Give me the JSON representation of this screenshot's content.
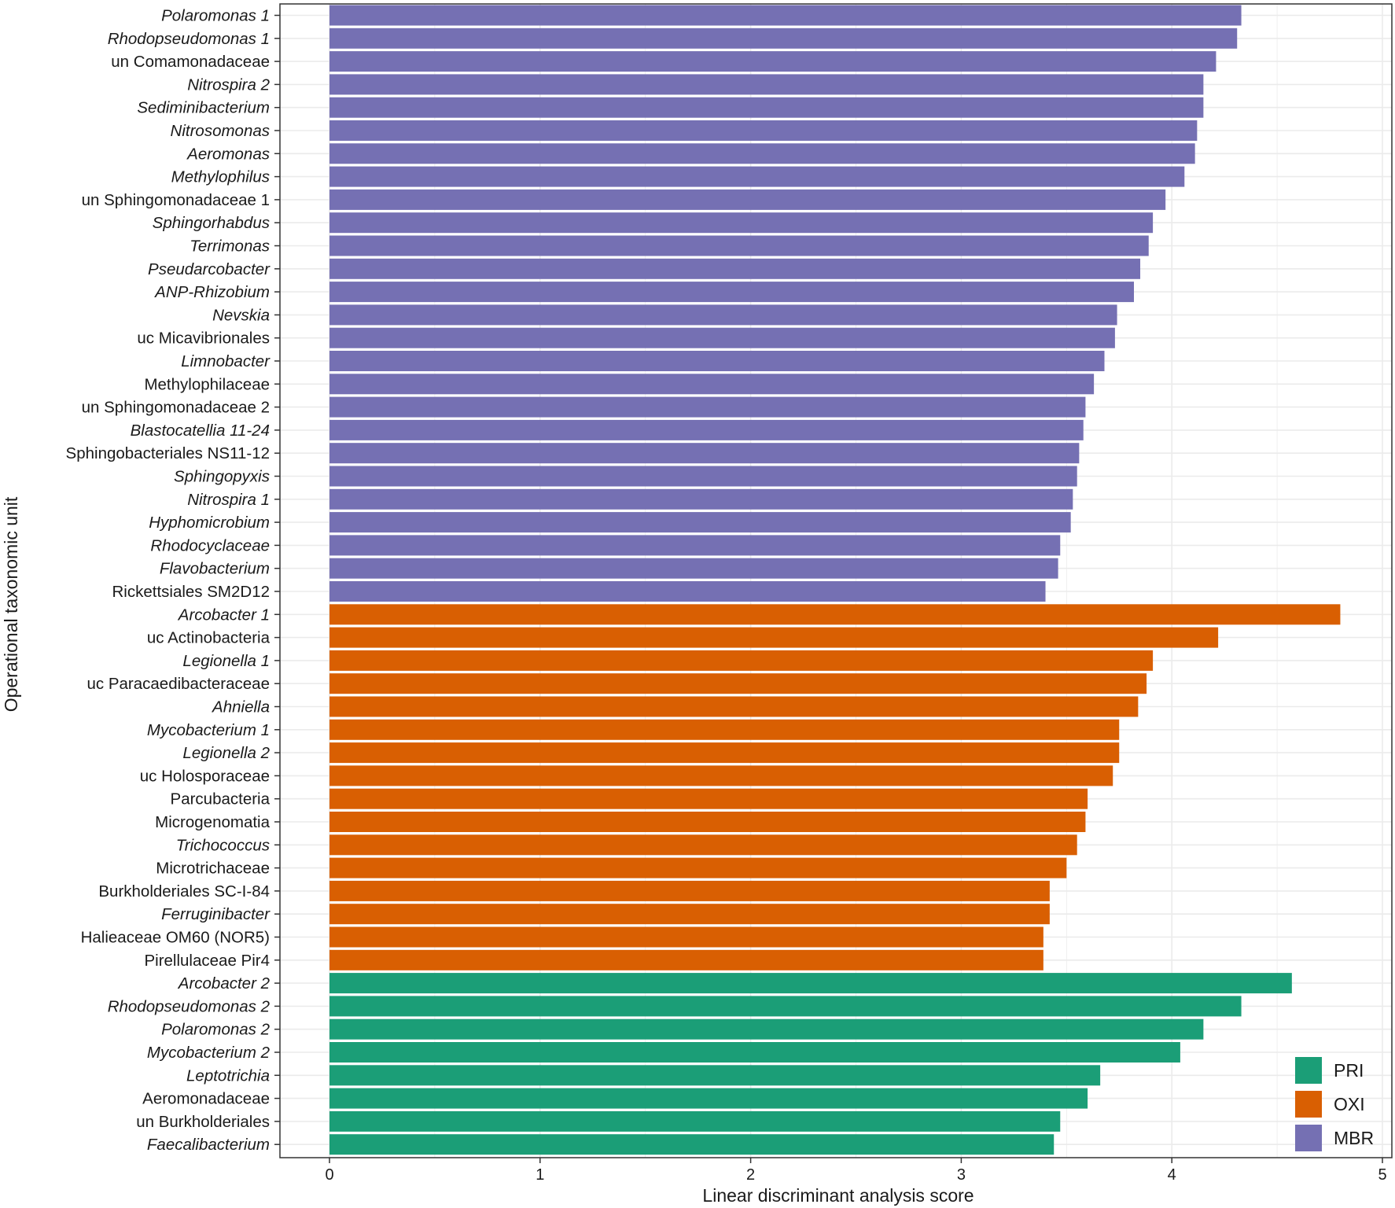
{
  "chart_data": {
    "type": "bar",
    "orientation": "horizontal",
    "xlabel": "Linear discriminant analysis score",
    "ylabel": "Operational taxonomic unit",
    "xlim": [
      0,
      5
    ],
    "xticks": [
      "0",
      "1",
      "2",
      "3",
      "4",
      "5"
    ],
    "grid": true,
    "legend_position": "bottom-right",
    "legend": [
      {
        "key": "PRI",
        "label": "PRI",
        "color": "#1b9e77"
      },
      {
        "key": "OXI",
        "label": "OXI",
        "color": "#d95f02"
      },
      {
        "key": "MBR",
        "label": "MBR",
        "color": "#7570b3"
      }
    ],
    "bars": [
      {
        "label": "Polaromonas 1",
        "value": 4.33,
        "group": "MBR",
        "italic": true
      },
      {
        "label": "Rhodopseudomonas 1",
        "value": 4.31,
        "group": "MBR",
        "italic": true
      },
      {
        "label": "un Comamonadaceae",
        "value": 4.21,
        "group": "MBR",
        "italic": false
      },
      {
        "label": "Nitrospira 2",
        "value": 4.15,
        "group": "MBR",
        "italic": true
      },
      {
        "label": "Sediminibacterium",
        "value": 4.15,
        "group": "MBR",
        "italic": true
      },
      {
        "label": "Nitrosomonas",
        "value": 4.12,
        "group": "MBR",
        "italic": true
      },
      {
        "label": "Aeromonas",
        "value": 4.11,
        "group": "MBR",
        "italic": true
      },
      {
        "label": "Methylophilus",
        "value": 4.06,
        "group": "MBR",
        "italic": true
      },
      {
        "label": "un Sphingomonadaceae 1",
        "value": 3.97,
        "group": "MBR",
        "italic": false
      },
      {
        "label": "Sphingorhabdus",
        "value": 3.91,
        "group": "MBR",
        "italic": true
      },
      {
        "label": "Terrimonas",
        "value": 3.89,
        "group": "MBR",
        "italic": true
      },
      {
        "label": "Pseudarcobacter",
        "value": 3.85,
        "group": "MBR",
        "italic": true
      },
      {
        "label": "ANP-Rhizobium",
        "value": 3.82,
        "group": "MBR",
        "italic": true
      },
      {
        "label": "Nevskia",
        "value": 3.74,
        "group": "MBR",
        "italic": true
      },
      {
        "label": "uc Micavibrionales",
        "value": 3.73,
        "group": "MBR",
        "italic": false
      },
      {
        "label": "Limnobacter",
        "value": 3.68,
        "group": "MBR",
        "italic": true
      },
      {
        "label": "Methylophilaceae",
        "value": 3.63,
        "group": "MBR",
        "italic": false
      },
      {
        "label": "un Sphingomonadaceae 2",
        "value": 3.59,
        "group": "MBR",
        "italic": false
      },
      {
        "label": "Blastocatellia 11-24",
        "value": 3.58,
        "group": "MBR",
        "italic": true
      },
      {
        "label": "Sphingobacteriales NS11-12",
        "value": 3.56,
        "group": "MBR",
        "italic": false
      },
      {
        "label": "Sphingopyxis",
        "value": 3.55,
        "group": "MBR",
        "italic": true
      },
      {
        "label": "Nitrospira 1",
        "value": 3.53,
        "group": "MBR",
        "italic": true
      },
      {
        "label": "Hyphomicrobium",
        "value": 3.52,
        "group": "MBR",
        "italic": true
      },
      {
        "label": "Rhodocyclaceae",
        "value": 3.47,
        "group": "MBR",
        "italic": true
      },
      {
        "label": "Flavobacterium",
        "value": 3.46,
        "group": "MBR",
        "italic": true
      },
      {
        "label": "Rickettsiales SM2D12",
        "value": 3.4,
        "group": "MBR",
        "italic": false
      },
      {
        "label": "Arcobacter 1",
        "value": 4.8,
        "group": "OXI",
        "italic": true
      },
      {
        "label": "uc Actinobacteria",
        "value": 4.22,
        "group": "OXI",
        "italic": false
      },
      {
        "label": "Legionella 1",
        "value": 3.91,
        "group": "OXI",
        "italic": true
      },
      {
        "label": "uc Paracaedibacteraceae",
        "value": 3.88,
        "group": "OXI",
        "italic": false
      },
      {
        "label": "Ahniella",
        "value": 3.84,
        "group": "OXI",
        "italic": true
      },
      {
        "label": "Mycobacterium 1",
        "value": 3.75,
        "group": "OXI",
        "italic": true
      },
      {
        "label": "Legionella 2",
        "value": 3.75,
        "group": "OXI",
        "italic": true
      },
      {
        "label": "uc Holosporaceae",
        "value": 3.72,
        "group": "OXI",
        "italic": false
      },
      {
        "label": "Parcubacteria",
        "value": 3.6,
        "group": "OXI",
        "italic": false
      },
      {
        "label": "Microgenomatia",
        "value": 3.59,
        "group": "OXI",
        "italic": false
      },
      {
        "label": "Trichococcus",
        "value": 3.55,
        "group": "OXI",
        "italic": true
      },
      {
        "label": "Microtrichaceae",
        "value": 3.5,
        "group": "OXI",
        "italic": false
      },
      {
        "label": "Burkholderiales SC-I-84",
        "value": 3.42,
        "group": "OXI",
        "italic": false
      },
      {
        "label": "Ferruginibacter",
        "value": 3.42,
        "group": "OXI",
        "italic": true
      },
      {
        "label": "Halieaceae OM60 (NOR5)",
        "value": 3.39,
        "group": "OXI",
        "italic": false
      },
      {
        "label": "Pirellulaceae Pir4",
        "value": 3.39,
        "group": "OXI",
        "italic": false
      },
      {
        "label": "Arcobacter 2",
        "value": 4.57,
        "group": "PRI",
        "italic": true
      },
      {
        "label": "Rhodopseudomonas 2",
        "value": 4.33,
        "group": "PRI",
        "italic": true
      },
      {
        "label": "Polaromonas 2",
        "value": 4.15,
        "group": "PRI",
        "italic": true
      },
      {
        "label": "Mycobacterium 2",
        "value": 4.04,
        "group": "PRI",
        "italic": true
      },
      {
        "label": "Leptotrichia",
        "value": 3.66,
        "group": "PRI",
        "italic": true
      },
      {
        "label": "Aeromonadaceae",
        "value": 3.6,
        "group": "PRI",
        "italic": false
      },
      {
        "label": "un Burkholderiales",
        "value": 3.47,
        "group": "PRI",
        "italic": false
      },
      {
        "label": "Faecalibacterium",
        "value": 3.44,
        "group": "PRI",
        "italic": true
      }
    ]
  }
}
